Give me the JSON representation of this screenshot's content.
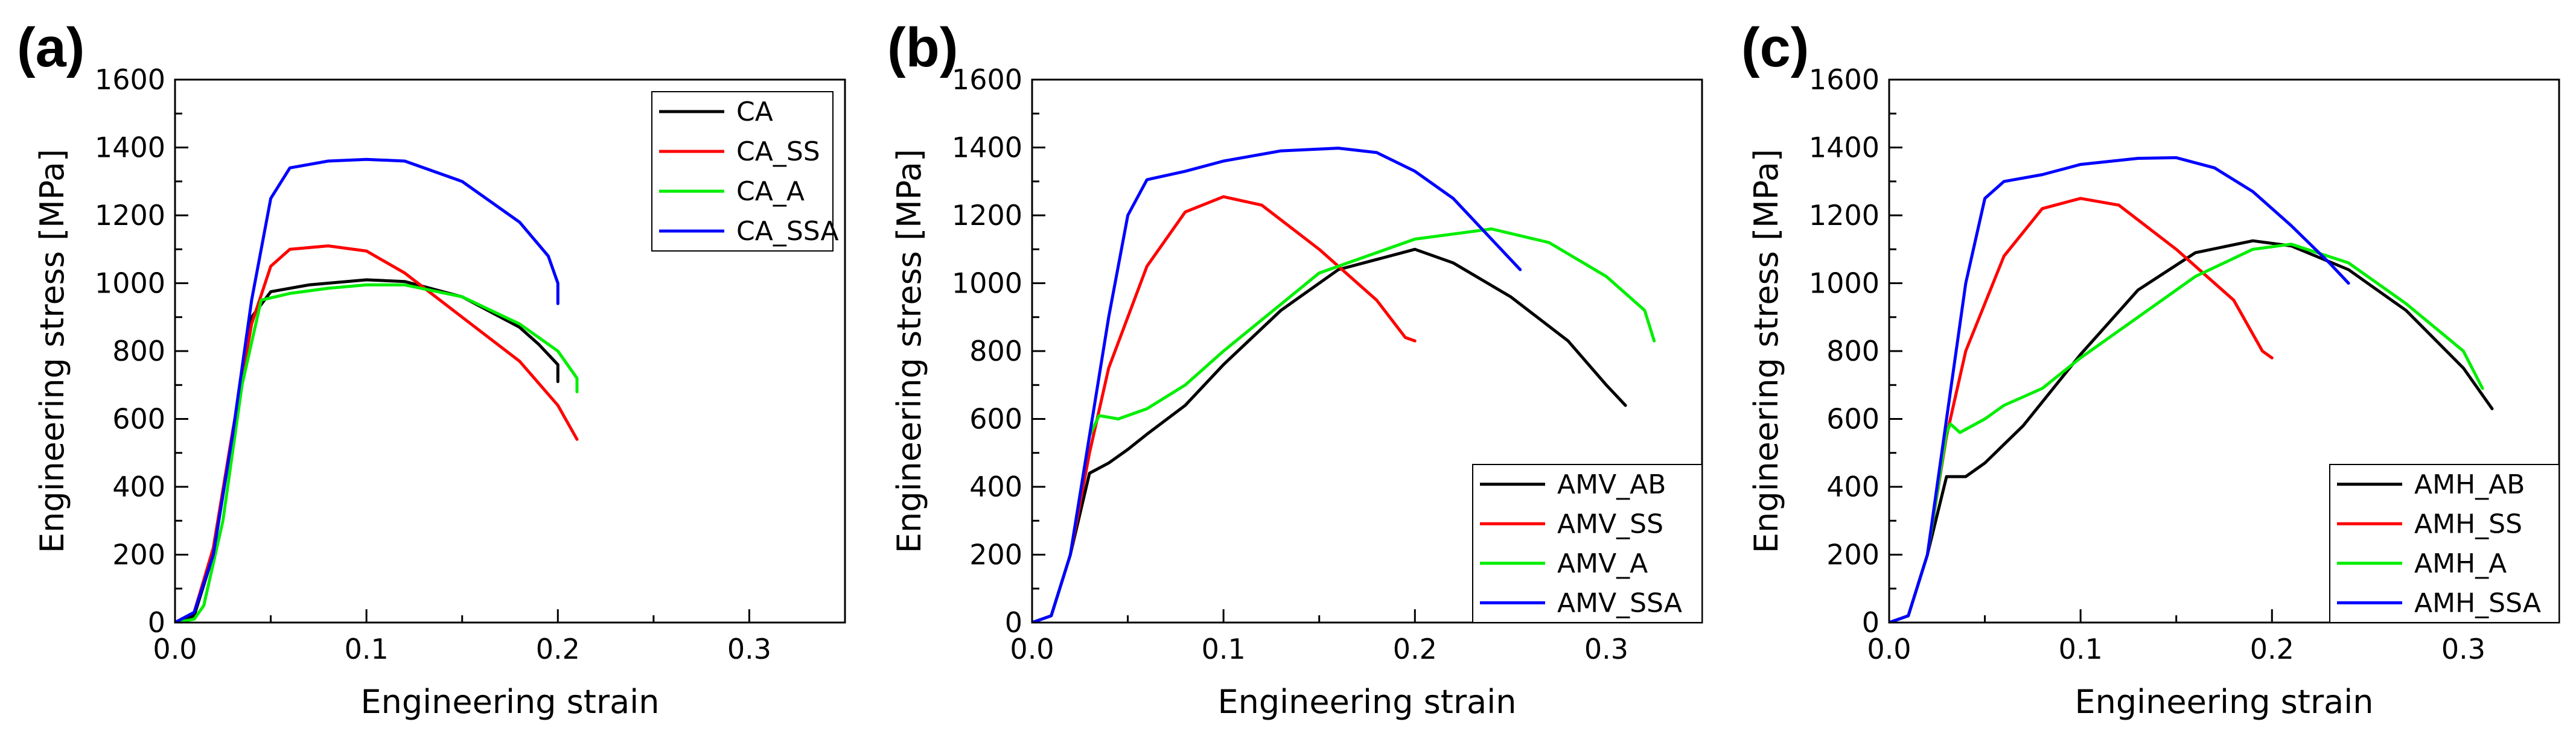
{
  "chart_data": [
    {
      "type": "line",
      "panel_label": "(a)",
      "xlabel": "Engineering strain",
      "ylabel": "Engineering stress [MPa]",
      "xlim": [
        0.0,
        0.35
      ],
      "ylim": [
        0,
        1600
      ],
      "xticks": [
        0.0,
        0.1,
        0.2,
        0.3
      ],
      "xtick_labels": [
        "0.0",
        "0.1",
        "0.2",
        "0.3"
      ],
      "yticks": [
        0,
        200,
        400,
        600,
        800,
        1000,
        1200,
        1400,
        1600
      ],
      "ytick_labels": [
        "0",
        "200",
        "400",
        "600",
        "800",
        "1000",
        "1200",
        "1400",
        "1600"
      ],
      "grid": false,
      "legend_position": "top-right",
      "series": [
        {
          "name": "CA",
          "color": "#000000",
          "points": [
            [
              0,
              0
            ],
            [
              0.01,
              20
            ],
            [
              0.02,
              200
            ],
            [
              0.03,
              550
            ],
            [
              0.04,
              900
            ],
            [
              0.05,
              975
            ],
            [
              0.07,
              995
            ],
            [
              0.1,
              1010
            ],
            [
              0.12,
              1005
            ],
            [
              0.15,
              960
            ],
            [
              0.18,
              870
            ],
            [
              0.19,
              820
            ],
            [
              0.2,
              760
            ],
            [
              0.2,
              710
            ]
          ]
        },
        {
          "name": "CA_SS",
          "color": "#ff0000",
          "points": [
            [
              0,
              0
            ],
            [
              0.01,
              30
            ],
            [
              0.02,
              220
            ],
            [
              0.03,
              560
            ],
            [
              0.04,
              880
            ],
            [
              0.05,
              1050
            ],
            [
              0.06,
              1100
            ],
            [
              0.08,
              1110
            ],
            [
              0.1,
              1095
            ],
            [
              0.12,
              1030
            ],
            [
              0.15,
              900
            ],
            [
              0.18,
              770
            ],
            [
              0.2,
              640
            ],
            [
              0.21,
              540
            ]
          ]
        },
        {
          "name": "CA_A",
          "color": "#00ee00",
          "points": [
            [
              0,
              0
            ],
            [
              0.01,
              10
            ],
            [
              0.015,
              50
            ],
            [
              0.025,
              300
            ],
            [
              0.035,
              700
            ],
            [
              0.045,
              950
            ],
            [
              0.06,
              970
            ],
            [
              0.08,
              985
            ],
            [
              0.1,
              995
            ],
            [
              0.12,
              995
            ],
            [
              0.15,
              960
            ],
            [
              0.18,
              880
            ],
            [
              0.2,
              800
            ],
            [
              0.21,
              720
            ],
            [
              0.21,
              680
            ]
          ]
        },
        {
          "name": "CA_SSA",
          "color": "#0000ff",
          "points": [
            [
              0,
              0
            ],
            [
              0.01,
              30
            ],
            [
              0.02,
              200
            ],
            [
              0.03,
              550
            ],
            [
              0.04,
              950
            ],
            [
              0.05,
              1250
            ],
            [
              0.06,
              1340
            ],
            [
              0.08,
              1360
            ],
            [
              0.1,
              1365
            ],
            [
              0.12,
              1360
            ],
            [
              0.15,
              1300
            ],
            [
              0.18,
              1180
            ],
            [
              0.195,
              1080
            ],
            [
              0.2,
              1000
            ],
            [
              0.2,
              940
            ]
          ]
        }
      ]
    },
    {
      "type": "line",
      "panel_label": "(b)",
      "xlabel": "Engineering strain",
      "ylabel": "Engineering stress [MPa]",
      "xlim": [
        0.0,
        0.35
      ],
      "ylim": [
        0,
        1600
      ],
      "xticks": [
        0.0,
        0.1,
        0.2,
        0.3
      ],
      "xtick_labels": [
        "0.0",
        "0.1",
        "0.2",
        "0.3"
      ],
      "yticks": [
        0,
        200,
        400,
        600,
        800,
        1000,
        1200,
        1400,
        1600
      ],
      "ytick_labels": [
        "0",
        "200",
        "400",
        "600",
        "800",
        "1000",
        "1200",
        "1400",
        "1600"
      ],
      "grid": false,
      "legend_position": "bottom-right",
      "series": [
        {
          "name": "AMV_AB",
          "color": "#000000",
          "points": [
            [
              0,
              0
            ],
            [
              0.01,
              20
            ],
            [
              0.02,
              200
            ],
            [
              0.03,
              440
            ],
            [
              0.04,
              470
            ],
            [
              0.05,
              510
            ],
            [
              0.06,
              555
            ],
            [
              0.08,
              640
            ],
            [
              0.1,
              760
            ],
            [
              0.13,
              920
            ],
            [
              0.16,
              1040
            ],
            [
              0.2,
              1100
            ],
            [
              0.22,
              1060
            ],
            [
              0.25,
              960
            ],
            [
              0.28,
              830
            ],
            [
              0.3,
              700
            ],
            [
              0.31,
              640
            ]
          ]
        },
        {
          "name": "AMV_SS",
          "color": "#ff0000",
          "points": [
            [
              0,
              0
            ],
            [
              0.01,
              20
            ],
            [
              0.02,
              200
            ],
            [
              0.03,
              500
            ],
            [
              0.04,
              750
            ],
            [
              0.06,
              1050
            ],
            [
              0.08,
              1210
            ],
            [
              0.1,
              1255
            ],
            [
              0.12,
              1230
            ],
            [
              0.15,
              1100
            ],
            [
              0.18,
              950
            ],
            [
              0.195,
              840
            ],
            [
              0.2,
              830
            ]
          ]
        },
        {
          "name": "AMV_A",
          "color": "#00ee00",
          "points": [
            [
              0,
              0
            ],
            [
              0.01,
              20
            ],
            [
              0.02,
              200
            ],
            [
              0.03,
              550
            ],
            [
              0.035,
              610
            ],
            [
              0.045,
              600
            ],
            [
              0.06,
              630
            ],
            [
              0.08,
              700
            ],
            [
              0.1,
              800
            ],
            [
              0.15,
              1030
            ],
            [
              0.2,
              1130
            ],
            [
              0.24,
              1160
            ],
            [
              0.27,
              1120
            ],
            [
              0.3,
              1020
            ],
            [
              0.32,
              920
            ],
            [
              0.325,
              830
            ]
          ]
        },
        {
          "name": "AMV_SSA",
          "color": "#0000ff",
          "points": [
            [
              0,
              0
            ],
            [
              0.01,
              20
            ],
            [
              0.02,
              200
            ],
            [
              0.03,
              550
            ],
            [
              0.04,
              900
            ],
            [
              0.05,
              1200
            ],
            [
              0.06,
              1305
            ],
            [
              0.08,
              1330
            ],
            [
              0.1,
              1360
            ],
            [
              0.13,
              1390
            ],
            [
              0.16,
              1398
            ],
            [
              0.18,
              1385
            ],
            [
              0.2,
              1330
            ],
            [
              0.22,
              1250
            ],
            [
              0.24,
              1130
            ],
            [
              0.255,
              1040
            ]
          ]
        }
      ]
    },
    {
      "type": "line",
      "panel_label": "(c)",
      "xlabel": "Engineering strain",
      "ylabel": "Engineering stress [MPa]",
      "xlim": [
        0.0,
        0.35
      ],
      "ylim": [
        0,
        1600
      ],
      "xticks": [
        0.0,
        0.1,
        0.2,
        0.3
      ],
      "xtick_labels": [
        "0.0",
        "0.1",
        "0.2",
        "0.3"
      ],
      "yticks": [
        0,
        200,
        400,
        600,
        800,
        1000,
        1200,
        1400,
        1600
      ],
      "ytick_labels": [
        "0",
        "200",
        "400",
        "600",
        "800",
        "1000",
        "1200",
        "1400",
        "1600"
      ],
      "grid": false,
      "legend_position": "bottom-right",
      "series": [
        {
          "name": "AMH_AB",
          "color": "#000000",
          "points": [
            [
              0,
              0
            ],
            [
              0.01,
              20
            ],
            [
              0.02,
              200
            ],
            [
              0.03,
              430
            ],
            [
              0.04,
              430
            ],
            [
              0.05,
              470
            ],
            [
              0.07,
              580
            ],
            [
              0.1,
              790
            ],
            [
              0.13,
              980
            ],
            [
              0.16,
              1090
            ],
            [
              0.19,
              1125
            ],
            [
              0.21,
              1110
            ],
            [
              0.24,
              1040
            ],
            [
              0.27,
              920
            ],
            [
              0.3,
              750
            ],
            [
              0.315,
              630
            ]
          ]
        },
        {
          "name": "AMH_SS",
          "color": "#ff0000",
          "points": [
            [
              0,
              0
            ],
            [
              0.01,
              20
            ],
            [
              0.02,
              200
            ],
            [
              0.03,
              550
            ],
            [
              0.04,
              800
            ],
            [
              0.06,
              1080
            ],
            [
              0.08,
              1220
            ],
            [
              0.1,
              1250
            ],
            [
              0.12,
              1230
            ],
            [
              0.15,
              1100
            ],
            [
              0.18,
              950
            ],
            [
              0.195,
              800
            ],
            [
              0.2,
              780
            ]
          ]
        },
        {
          "name": "AMH_A",
          "color": "#00ee00",
          "points": [
            [
              0,
              0
            ],
            [
              0.01,
              20
            ],
            [
              0.02,
              200
            ],
            [
              0.03,
              560
            ],
            [
              0.032,
              585
            ],
            [
              0.037,
              560
            ],
            [
              0.05,
              600
            ],
            [
              0.06,
              640
            ],
            [
              0.08,
              690
            ],
            [
              0.1,
              780
            ],
            [
              0.13,
              900
            ],
            [
              0.16,
              1020
            ],
            [
              0.19,
              1100
            ],
            [
              0.21,
              1115
            ],
            [
              0.24,
              1060
            ],
            [
              0.27,
              940
            ],
            [
              0.3,
              800
            ],
            [
              0.31,
              690
            ]
          ]
        },
        {
          "name": "AMH_SSA",
          "color": "#0000ff",
          "points": [
            [
              0,
              0
            ],
            [
              0.01,
              20
            ],
            [
              0.02,
              200
            ],
            [
              0.03,
              600
            ],
            [
              0.04,
              1000
            ],
            [
              0.05,
              1250
            ],
            [
              0.06,
              1300
            ],
            [
              0.08,
              1320
            ],
            [
              0.1,
              1350
            ],
            [
              0.13,
              1368
            ],
            [
              0.15,
              1370
            ],
            [
              0.17,
              1340
            ],
            [
              0.19,
              1270
            ],
            [
              0.21,
              1170
            ],
            [
              0.23,
              1060
            ],
            [
              0.24,
              1000
            ]
          ]
        }
      ]
    }
  ]
}
